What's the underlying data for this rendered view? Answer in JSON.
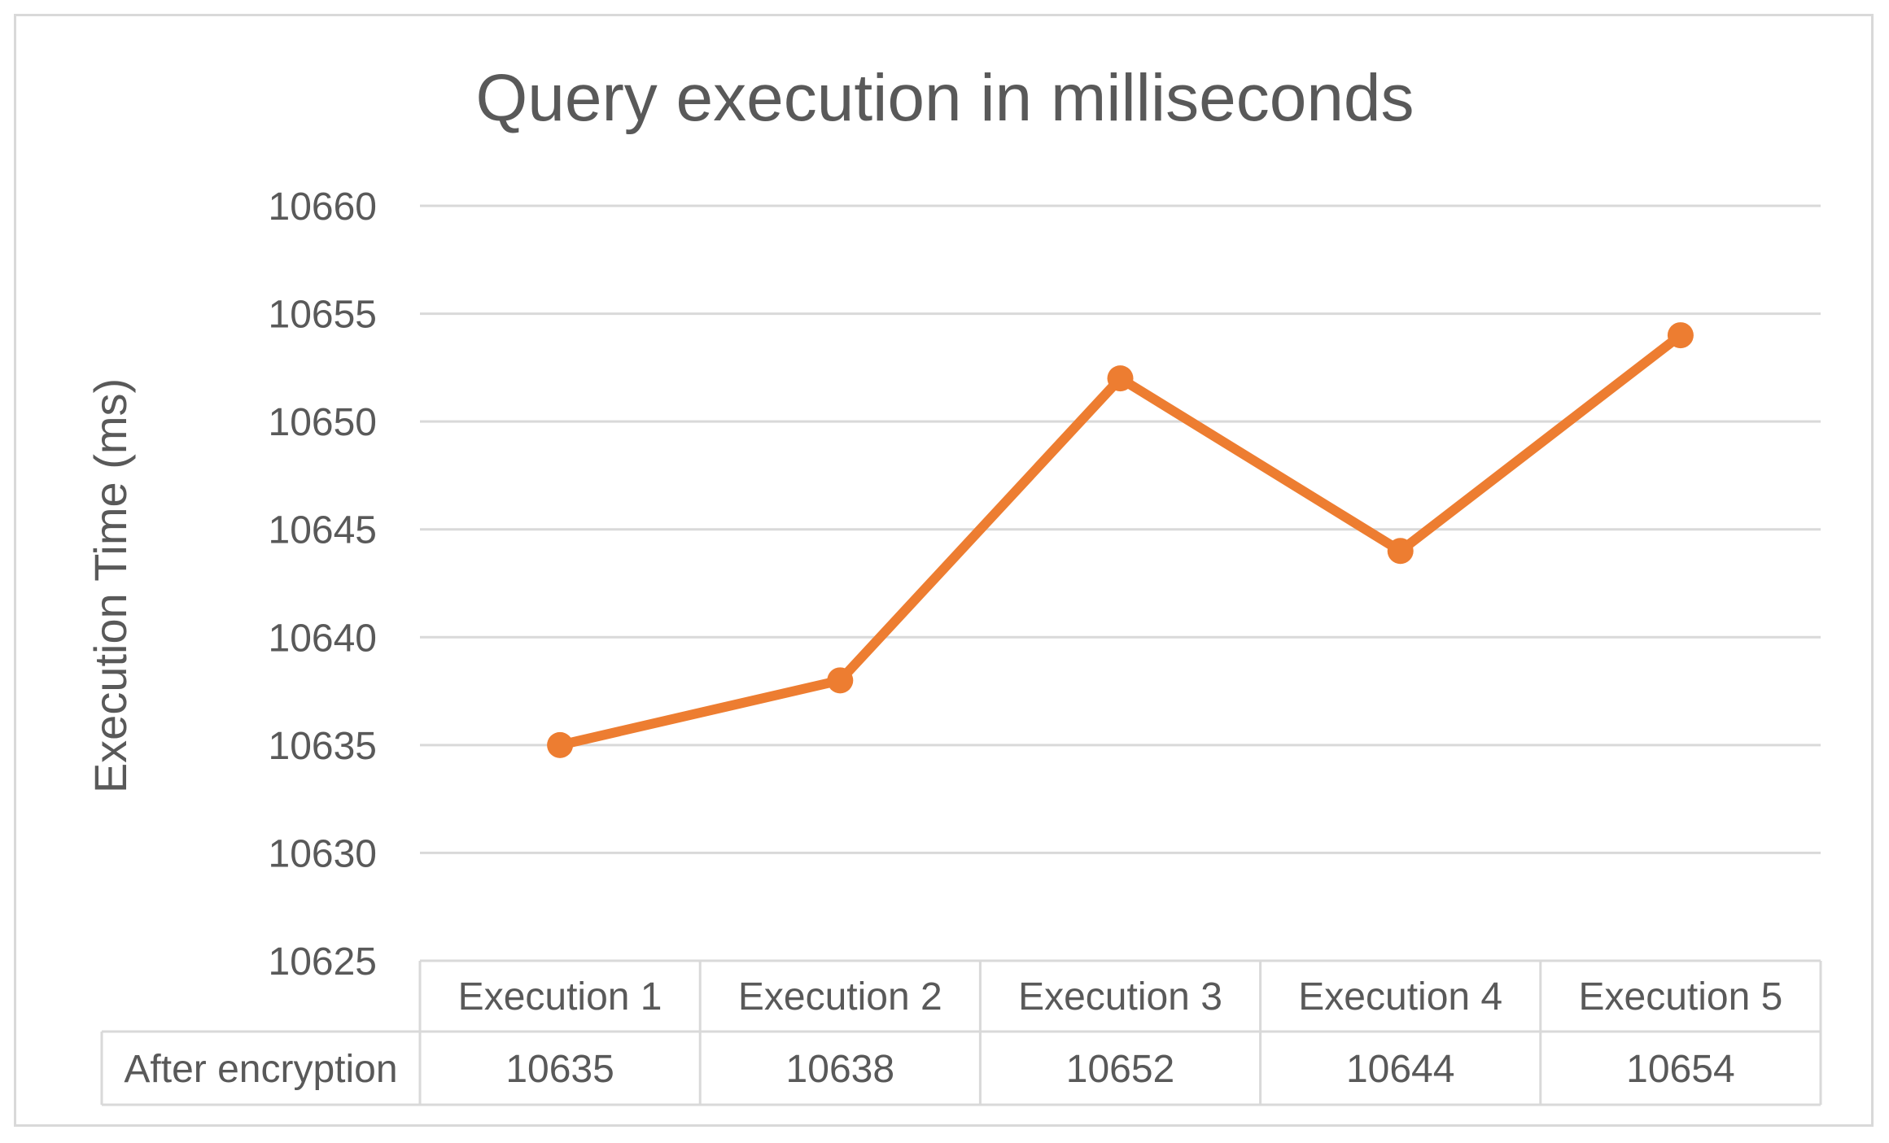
{
  "chart_data": {
    "type": "line",
    "title": "Query execution in milliseconds",
    "xlabel": "",
    "ylabel": "Execution Time (ms)",
    "categories": [
      "Execution 1",
      "Execution 2",
      "Execution 3",
      "Execution 4",
      "Execution 5"
    ],
    "series": [
      {
        "name": "After encryption",
        "values": [
          10635,
          10638,
          10652,
          10644,
          10654
        ],
        "color": "#ED7D31"
      }
    ],
    "ylim": [
      10625,
      10660
    ],
    "yticks": [
      "10625",
      "10630",
      "10635",
      "10640",
      "10645",
      "10650",
      "10655",
      "10660"
    ],
    "grid": true,
    "data_table": {
      "row_label": "After encryption",
      "values": [
        "10635",
        "10638",
        "10652",
        "10644",
        "10654"
      ]
    }
  }
}
